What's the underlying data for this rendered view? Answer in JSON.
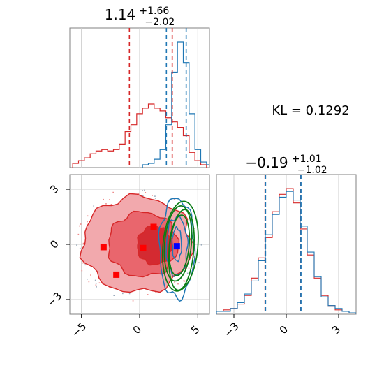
{
  "figure": {
    "kl_label": "KL = 0.1292"
  },
  "titles": {
    "p1": {
      "base": "1.14",
      "sup": "+1.66",
      "sub": "−2.02"
    },
    "p2": {
      "base": "−0.19",
      "sup": "+1.01",
      "sub": "−1.02"
    }
  },
  "colors": {
    "red": "#d62728",
    "blue": "#1f77b4",
    "green": "#0a7d15",
    "marker_blue": "#0000ff",
    "marker_red": "#ff0000",
    "grid": "#cccccc"
  },
  "chart_data": [
    {
      "type": "histogram",
      "panel": "top-left marginal (parameter 1)",
      "xlim": [
        -6,
        6
      ],
      "series": [
        {
          "color": "red",
          "centers": [
            -5.5,
            -5.0,
            -4.5,
            -4.0,
            -3.5,
            -3.0,
            -2.5,
            -2.0,
            -1.5,
            -1.0,
            -0.5,
            0.0,
            0.5,
            1.0,
            1.5,
            2.0,
            2.5,
            3.0,
            3.5,
            4.0,
            4.5,
            5.0,
            5.5
          ],
          "values": [
            2,
            4,
            6,
            9,
            11,
            12,
            11,
            12,
            16,
            25,
            30,
            38,
            42,
            45,
            42,
            40,
            35,
            32,
            28,
            22,
            10,
            4,
            1
          ]
        },
        {
          "color": "blue",
          "centers": [
            0.5,
            1.0,
            1.5,
            2.0,
            2.5,
            3.0,
            3.5,
            4.0,
            4.5,
            5.0,
            5.5,
            6.0
          ],
          "values": [
            1,
            2,
            5,
            12,
            30,
            68,
            90,
            75,
            38,
            12,
            3,
            1
          ]
        }
      ],
      "quantile_lines": {
        "red": [
          -0.88,
          2.8
        ],
        "blue": [
          2.3,
          4.0
        ]
      }
    },
    {
      "type": "histogram",
      "panel": "bottom-right marginal (parameter 2)",
      "xlim": [
        -4,
        4
      ],
      "x_ticks": [
        "−3",
        "0",
        "3"
      ],
      "series": [
        {
          "color": "red",
          "centers": [
            -3.8,
            -3.4,
            -3.0,
            -2.6,
            -2.2,
            -1.8,
            -1.4,
            -1.0,
            -0.6,
            -0.2,
            0.2,
            0.6,
            1.0,
            1.4,
            1.8,
            2.2,
            2.6,
            3.0,
            3.4,
            3.8
          ],
          "values": [
            1,
            2,
            3,
            6,
            12,
            24,
            38,
            52,
            70,
            82,
            86,
            76,
            58,
            40,
            24,
            12,
            5,
            2,
            1,
            0
          ]
        },
        {
          "color": "blue",
          "centers": [
            -3.8,
            -3.4,
            -3.0,
            -2.6,
            -2.2,
            -1.8,
            -1.4,
            -1.0,
            -0.6,
            -0.2,
            0.2,
            0.6,
            1.0,
            1.4,
            1.8,
            2.2,
            2.6,
            3.0,
            3.4,
            3.8
          ],
          "values": [
            1,
            1,
            3,
            7,
            13,
            22,
            36,
            54,
            68,
            80,
            84,
            78,
            60,
            42,
            25,
            11,
            5,
            3,
            1,
            0
          ]
        }
      ],
      "quantile_lines": {
        "red": [
          -1.21,
          0.82
        ],
        "blue": [
          -1.19,
          0.84
        ]
      }
    },
    {
      "type": "contour-2d",
      "panel": "bottom-left joint (parameter 1 vs parameter 2)",
      "xlim": [
        -6,
        6
      ],
      "ylim": [
        -3.8,
        3.8
      ],
      "x_ticks": [
        "−5",
        "0",
        "5"
      ],
      "y_ticks": [
        "3",
        "0",
        "−3"
      ],
      "filled_red_levels": [
        {
          "cx": -0.2,
          "cy": 0.0,
          "rx": 4.7,
          "ry": 2.6
        },
        {
          "cx": 0.3,
          "cy": 0.0,
          "rx": 3.0,
          "ry": 1.75
        },
        {
          "cx": 1.3,
          "cy": -0.05,
          "rx": 1.5,
          "ry": 1.05
        }
      ],
      "blue_contours": [
        {
          "cx": 3.2,
          "cy": -0.2,
          "rx": 1.5,
          "ry": 2.7
        },
        {
          "cx": 3.2,
          "cy": -0.1,
          "rx": 0.9,
          "ry": 1.6
        },
        {
          "cx": 3.2,
          "cy": 0.0,
          "rx": 0.4,
          "ry": 0.9
        }
      ],
      "green_ellipses": [
        {
          "cx": 3.5,
          "cy": -0.1,
          "rx": 1.5,
          "ry": 2.45,
          "rot": 5
        },
        {
          "cx": 3.3,
          "cy": 0.05,
          "rx": 1.15,
          "ry": 2.05,
          "rot": 5
        },
        {
          "cx": 3.6,
          "cy": -0.3,
          "rx": 1.05,
          "ry": 2.2,
          "rot": 5
        },
        {
          "cx": 3.4,
          "cy": -0.05,
          "rx": 0.85,
          "ry": 1.65,
          "rot": 5
        }
      ],
      "markers_red": [
        {
          "x": -3.1,
          "y": -0.15
        },
        {
          "x": 0.3,
          "y": -0.2
        },
        {
          "x": 1.2,
          "y": 0.95
        },
        {
          "x": -2.0,
          "y": -1.65
        }
      ],
      "markers_blue": [
        {
          "x": 3.2,
          "y": -0.1
        }
      ]
    }
  ]
}
